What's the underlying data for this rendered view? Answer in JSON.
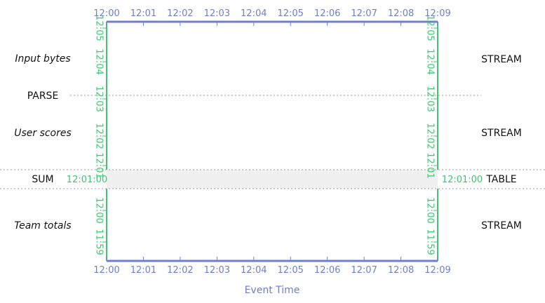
{
  "colors": {
    "event_time_axis": "#6f7fd0",
    "processing_time_axis": "#3cc86e",
    "divider": "#9a9a9a",
    "table_band": "#f0f0f0",
    "text": "#111111"
  },
  "x_axis": {
    "title": "Event Time",
    "ticks": [
      "12:00",
      "12:01",
      "12:02",
      "12:03",
      "12:04",
      "12:05",
      "12:06",
      "12:07",
      "12:08",
      "12:09"
    ]
  },
  "y_axis_upper": {
    "ticks": [
      "12:05",
      "12:04",
      "12:03",
      "12:02",
      "12:01"
    ]
  },
  "y_axis_lower": {
    "ticks": [
      "12:00",
      "11:59"
    ]
  },
  "snapshot": {
    "left_time": "12:01:00",
    "right_time": "12:01:00"
  },
  "rows": [
    {
      "left_label": "Input bytes",
      "left_style": "italic",
      "right_label": "STREAM"
    },
    {
      "left_label": "PARSE",
      "left_style": "normal",
      "right_label": ""
    },
    {
      "left_label": "User scores",
      "left_style": "italic",
      "right_label": "STREAM"
    },
    {
      "left_label": "SUM",
      "left_style": "normal",
      "right_label": "TABLE"
    },
    {
      "left_label": "Team totals",
      "left_style": "italic",
      "right_label": "STREAM"
    }
  ]
}
